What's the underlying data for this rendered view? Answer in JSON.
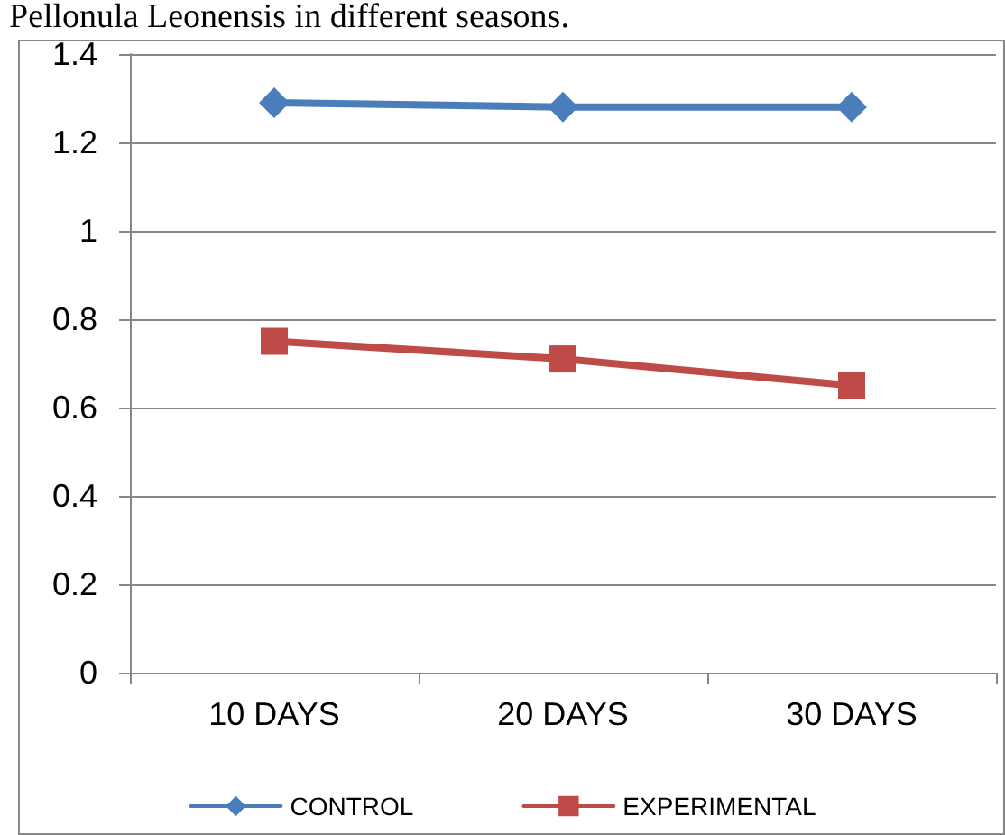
{
  "chart_data": {
    "type": "line",
    "title": "Pellonula Leonensis in different seasons.",
    "categories": [
      "10 DAYS",
      "20 DAYS",
      "30 DAYS"
    ],
    "series": [
      {
        "name": "CONTROL",
        "color": "#4a7ebb",
        "marker": "diamond",
        "values": [
          1.29,
          1.28,
          1.28
        ]
      },
      {
        "name": "EXPERIMENTAL",
        "color": "#be4b48",
        "marker": "square",
        "values": [
          0.75,
          0.71,
          0.65
        ]
      }
    ],
    "ylim": [
      0,
      1.4
    ],
    "yticks": [
      0,
      0.2,
      0.4,
      0.6,
      0.8,
      1,
      1.2,
      1.4
    ],
    "grid": "y",
    "legend": "bottom"
  }
}
